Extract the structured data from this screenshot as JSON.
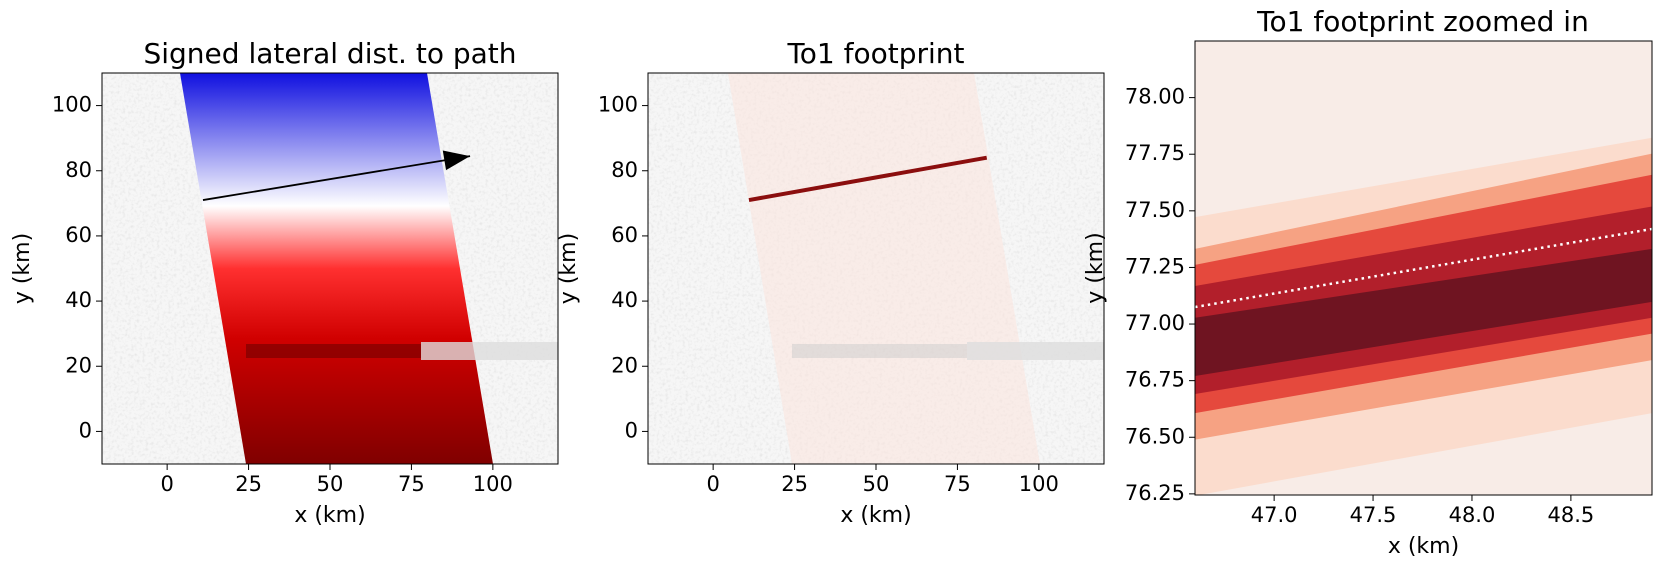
{
  "chart_data": [
    {
      "type": "line",
      "title": "Signed lateral dist. to path",
      "xlabel": "x (km)",
      "ylabel": "y (km)",
      "x": [
        11,
        93
      ],
      "series": [
        {
          "color": "#000000",
          "values": [
            71,
            84.5
          ],
          "arrow": true
        }
      ],
      "xlim": [
        -20,
        120
      ],
      "ylim": [
        -10,
        110
      ],
      "xticks": [
        0,
        25,
        50,
        75,
        100
      ],
      "yticks": [
        0,
        20,
        40,
        60,
        80,
        100
      ]
    },
    {
      "type": "line",
      "title": "To1 footprint",
      "xlabel": "x (km)",
      "ylabel": "y (km)",
      "x": [
        11,
        84
      ],
      "series": [
        {
          "color": "#8b0e0e",
          "values": [
            71,
            84
          ]
        }
      ],
      "xlim": [
        -20,
        120
      ],
      "ylim": [
        -10,
        110
      ],
      "xticks": [
        0,
        25,
        50,
        75,
        100
      ],
      "yticks": [
        0,
        20,
        40,
        60,
        80,
        100
      ]
    },
    {
      "type": "line",
      "title": "To1 footprint zoomed in",
      "xlabel": "x (km)",
      "ylabel": "y (km)",
      "x": [
        46.6,
        48.91
      ],
      "series": [
        {
          "color": "#ffffff",
          "values": [
            77.075,
            77.42
          ],
          "linestyle": "dotted"
        }
      ],
      "xlim": [
        46.6,
        48.91
      ],
      "ylim": [
        76.245,
        78.25
      ],
      "xticks": [
        {
          "value": 47,
          "label": "47.0"
        },
        {
          "value": 47.5,
          "label": "47.5"
        },
        {
          "value": 48,
          "label": "48.0"
        },
        {
          "value": 48.5,
          "label": "48.5"
        }
      ],
      "yticks": [
        {
          "value": 76.25,
          "label": "76.25"
        },
        {
          "value": 76.5,
          "label": "76.50"
        },
        {
          "value": 76.75,
          "label": "76.75"
        },
        {
          "value": 77,
          "label": "77.00"
        },
        {
          "value": 77.25,
          "label": "77.25"
        },
        {
          "value": 77.5,
          "label": "77.50"
        },
        {
          "value": 77.75,
          "label": "77.75"
        },
        {
          "value": 78,
          "label": "78.00"
        }
      ]
    }
  ]
}
